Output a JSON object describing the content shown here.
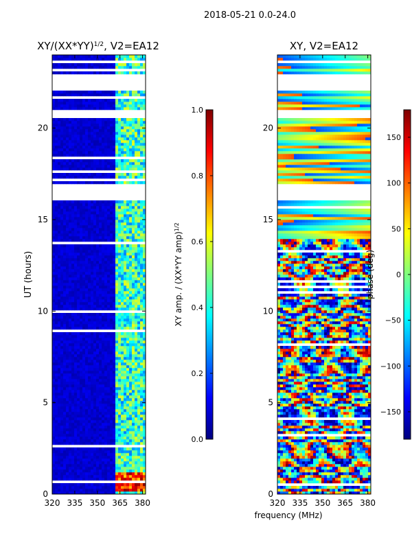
{
  "suptitle": "2018-05-21 0.0-24.0",
  "shared_xlabel": "frequency (MHz)",
  "colors": {
    "jet": [
      "#00007f",
      "#0000ff",
      "#007fff",
      "#00ffff",
      "#7fff7f",
      "#ffff00",
      "#ff7f00",
      "#ff0000",
      "#7f0000"
    ],
    "flag_gap": "#ffffff",
    "frame": "#000000"
  },
  "chart_data": [
    {
      "type": "heatmap",
      "title_main": "XY/(XX*YY)",
      "title_exp": "1/2",
      "title_suffix": ", V2=EA12",
      "xlabel": "",
      "ylabel": "UT (hours)",
      "xlim": [
        320,
        382
      ],
      "ylim": [
        0,
        24
      ],
      "xticks": [
        320,
        335,
        350,
        365,
        380
      ],
      "yticks": [
        0,
        5,
        10,
        15,
        20
      ],
      "colorbar": {
        "label_main": "XY amp. / (XX*YY amp)",
        "label_exp": "1/2",
        "range": [
          0.0,
          1.0
        ],
        "ticks": [
          "0.0",
          "0.2",
          "0.4",
          "0.6",
          "0.8",
          "1.0"
        ]
      },
      "flagged_hours": [
        [
          20.5,
          21.0
        ],
        [
          22.1,
          23.0
        ],
        [
          16.0,
          17.0
        ],
        [
          23.5,
          23.7
        ],
        [
          0.0,
          0.05
        ]
      ],
      "features": [
        {
          "label": "low background amplitude",
          "freq": [
            320,
            360
          ],
          "level": 0.08
        },
        {
          "label": "RFI band",
          "freq": [
            360,
            375
          ],
          "level": 0.45
        },
        {
          "label": "RFI band",
          "freq": [
            375,
            382
          ],
          "level": 0.35
        },
        {
          "label": "burst",
          "freq": [
            360,
            382
          ],
          "hours": [
            0.1,
            1.2
          ],
          "level": 0.9
        }
      ]
    },
    {
      "type": "heatmap",
      "title_main": "XY, V2=EA12",
      "xlabel": "",
      "ylabel": "",
      "xlim": [
        320,
        382
      ],
      "ylim": [
        0,
        24
      ],
      "xticks": [
        320,
        335,
        350,
        365,
        380
      ],
      "yticks": [
        0,
        5,
        10,
        15,
        20
      ],
      "colorbar": {
        "label_main": "phase (deg)",
        "range": [
          -180,
          180
        ],
        "ticks": [
          "−150",
          "−100",
          "−50",
          "0",
          "50",
          "100",
          "150"
        ]
      },
      "flagged_hours": [
        [
          20.5,
          21.0
        ],
        [
          22.1,
          23.0
        ],
        [
          16.0,
          17.0
        ],
        [
          23.5,
          23.7
        ]
      ],
      "features": [
        {
          "label": "phase wraps (noisy)",
          "hours": [
            0,
            14
          ],
          "range": [
            -180,
            180
          ]
        },
        {
          "label": "stable phase",
          "hours": [
            14,
            24
          ],
          "range": [
            -120,
            120
          ]
        }
      ]
    }
  ]
}
